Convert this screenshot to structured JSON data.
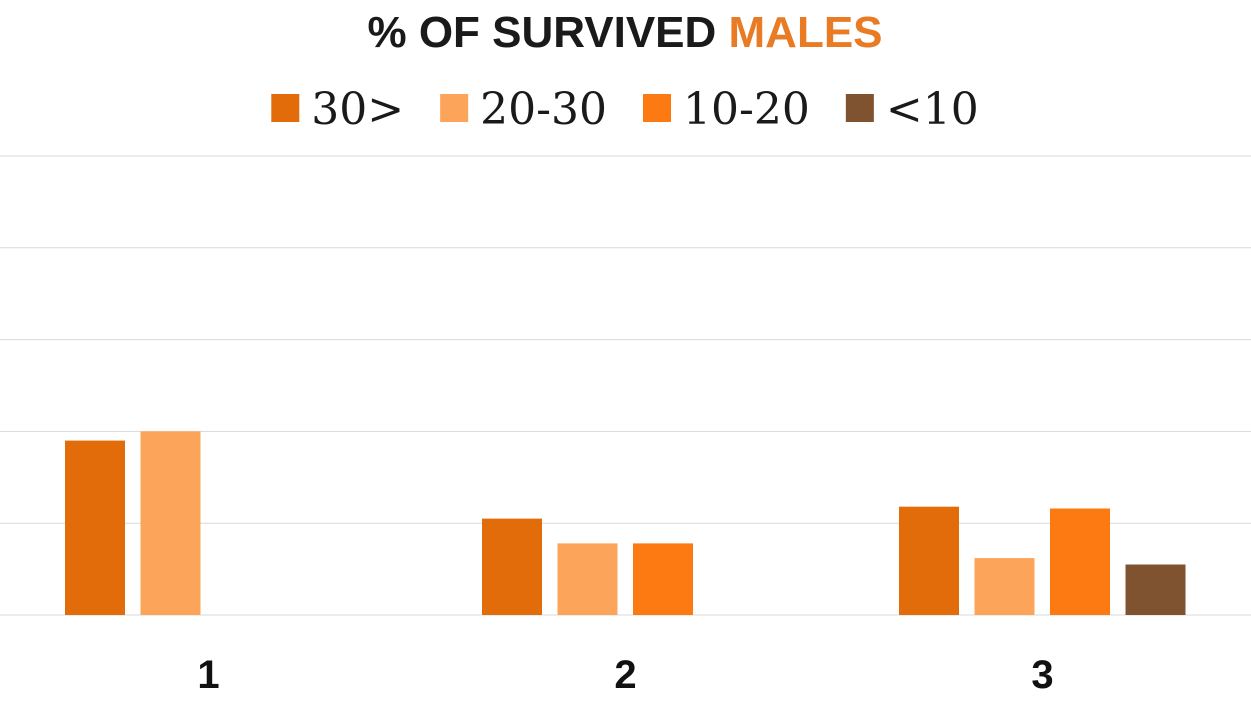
{
  "chart_data": {
    "type": "bar",
    "title_parts": [
      {
        "text": "% OF SURVIVED ",
        "color": "#1a1a1a"
      },
      {
        "text": "MALES",
        "color": "#e97b24"
      }
    ],
    "categories": [
      "1",
      "2",
      "3"
    ],
    "series": [
      {
        "name": "30>",
        "color": "#e36c0a",
        "values": [
          19,
          10.5,
          11.8
        ]
      },
      {
        "name": "20-30",
        "color": "#fca45a",
        "values": [
          20,
          7.8,
          6.2
        ]
      },
      {
        "name": "10-20",
        "color": "#fd7a12",
        "values": [
          null,
          7.8,
          11.6
        ]
      },
      {
        "name": "<10",
        "color": "#7f5230",
        "values": [
          null,
          null,
          5.5
        ]
      }
    ],
    "ylim": [
      0,
      50
    ],
    "grid": true,
    "legend": "top-center",
    "xlabel": "",
    "ylabel": ""
  }
}
